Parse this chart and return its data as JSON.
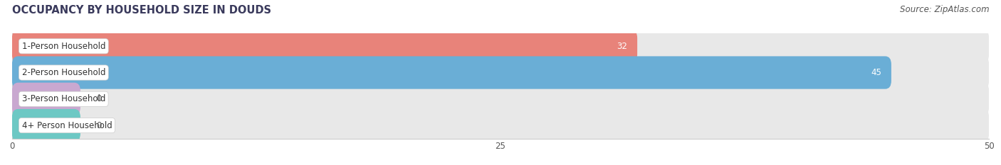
{
  "title": "OCCUPANCY BY HOUSEHOLD SIZE IN DOUDS",
  "source": "Source: ZipAtlas.com",
  "categories": [
    "1-Person Household",
    "2-Person Household",
    "3-Person Household",
    "4+ Person Household"
  ],
  "values": [
    32,
    45,
    0,
    0
  ],
  "bar_colors": [
    "#E8837A",
    "#6AAED6",
    "#C9A8D0",
    "#6DC8C4"
  ],
  "xlim": [
    0,
    50
  ],
  "xticks": [
    0,
    25,
    50
  ],
  "value_label_color": "#ffffff",
  "background_color": "#ffffff",
  "bar_bg_color": "#e8e8e8",
  "title_fontsize": 10.5,
  "source_fontsize": 8.5,
  "label_fontsize": 8.5,
  "value_fontsize": 8.5,
  "zero_bar_width": 3.5
}
